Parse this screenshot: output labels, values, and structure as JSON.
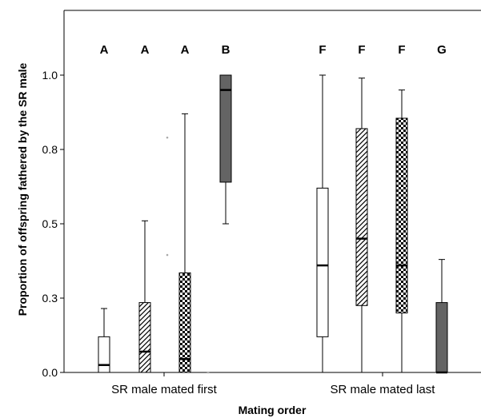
{
  "chart_data": {
    "type": "boxplot",
    "xlabel": "Mating order",
    "ylabel": "Proportion of offspring fathered by the SR male",
    "ylim": [
      0,
      1.2
    ],
    "y_ticks": [
      {
        "value": 0.0,
        "label": "0.0"
      },
      {
        "value": 0.25,
        "label": "0.3"
      },
      {
        "value": 0.5,
        "label": "0.5"
      },
      {
        "value": 0.75,
        "label": "0.8"
      },
      {
        "value": 1.0,
        "label": "1.0"
      }
    ],
    "grid": false,
    "categories": [
      "SR male mated first",
      "SR male mated last"
    ],
    "fill_colors": {
      "white": "#ffffff",
      "dark": "#646464",
      "stroke": "#000000"
    },
    "boxes": [
      {
        "group": 0,
        "fill": "white",
        "letter": "A",
        "whisker_low": 0.0,
        "q1": 0.0,
        "median": 0.025,
        "q3": 0.12,
        "whisker_high": 0.215
      },
      {
        "group": 0,
        "fill": "hatch",
        "letter": "A",
        "whisker_low": 0.0,
        "q1": 0.0,
        "median": 0.07,
        "q3": 0.235,
        "whisker_high": 0.51
      },
      {
        "group": 0,
        "fill": "checker",
        "letter": "A",
        "whisker_low": 0.0,
        "q1": 0.0,
        "median": 0.045,
        "q3": 0.335,
        "whisker_high": 0.87
      },
      {
        "group": 0,
        "fill": "dark",
        "letter": "B",
        "whisker_low": 0.5,
        "q1": 0.64,
        "median": 0.95,
        "q3": 1.0,
        "whisker_high": 1.0
      },
      {
        "group": 1,
        "fill": "white",
        "letter": "F",
        "whisker_low": 0.0,
        "q1": 0.12,
        "median": 0.36,
        "q3": 0.62,
        "whisker_high": 1.0
      },
      {
        "group": 1,
        "fill": "hatch",
        "letter": "F",
        "whisker_low": 0.0,
        "q1": 0.225,
        "median": 0.45,
        "q3": 0.82,
        "whisker_high": 0.99
      },
      {
        "group": 1,
        "fill": "checker",
        "letter": "F",
        "whisker_low": 0.0,
        "q1": 0.2,
        "median": 0.36,
        "q3": 0.855,
        "whisker_high": 0.95
      },
      {
        "group": 1,
        "fill": "dark",
        "letter": "G",
        "whisker_low": 0.0,
        "q1": 0.0,
        "median": 0.0,
        "q3": 0.235,
        "whisker_high": 0.38
      }
    ],
    "outliers": [
      {
        "box": 2,
        "value": 0.79
      },
      {
        "box": 2,
        "value": 0.395
      },
      {
        "box": 3,
        "value": 0.0
      }
    ]
  }
}
